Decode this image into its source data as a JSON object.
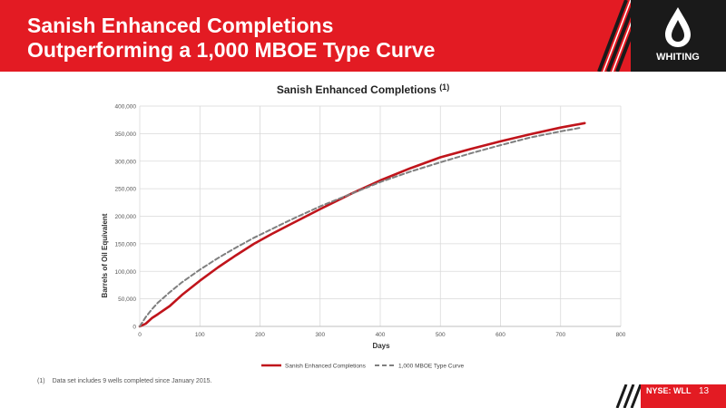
{
  "slide": {
    "title_line1": "Sanish Enhanced Completions",
    "title_line2": "Outperforming a 1,000 MBOE Type Curve",
    "footnote_number": "(1)",
    "footnote_text": "Data set includes 9 wells completed since January 2015.",
    "ticker_prefix": "NYSE:",
    "ticker_symbol": "WLL",
    "page_number": "13",
    "logo_text": "WHITING"
  },
  "colors": {
    "brand_red": "#e31b23",
    "series_enhanced": "#c0141b",
    "series_type_curve": "#7f7f7f"
  },
  "chart_data": {
    "type": "line",
    "title": "Sanish Enhanced Completions",
    "title_superscript": "(1)",
    "xlabel": "Days",
    "ylabel": "Barrels of Oil Equivalent",
    "xlim": [
      0,
      800
    ],
    "ylim": [
      0,
      400000
    ],
    "x_ticks": [
      0,
      100,
      200,
      300,
      400,
      500,
      600,
      700,
      800
    ],
    "y_ticks": [
      0,
      50000,
      100000,
      150000,
      200000,
      250000,
      300000,
      350000,
      400000
    ],
    "x_tick_labels": [
      "0",
      "100",
      "200",
      "300",
      "400",
      "500",
      "600",
      "700",
      "800"
    ],
    "y_tick_labels": [
      "0",
      "50,000",
      "100,000",
      "150,000",
      "200,000",
      "250,000",
      "300,000",
      "350,000",
      "400,000"
    ],
    "grid": true,
    "legend_position": "bottom",
    "series": [
      {
        "name": "Sanish Enhanced Completions",
        "style": "solid",
        "x": [
          0,
          10,
          20,
          30,
          50,
          70,
          100,
          130,
          160,
          190,
          220,
          250,
          300,
          350,
          400,
          450,
          500,
          550,
          600,
          650,
          700,
          740
        ],
        "y": [
          0,
          5000,
          15000,
          22000,
          37000,
          57000,
          83000,
          107000,
          129000,
          150000,
          168000,
          185000,
          213000,
          240000,
          265000,
          287000,
          307000,
          322000,
          336000,
          349000,
          361000,
          369000
        ]
      },
      {
        "name": "1,000 MBOE Type Curve",
        "style": "dashed",
        "x": [
          0,
          10,
          20,
          30,
          50,
          70,
          100,
          130,
          160,
          190,
          220,
          250,
          300,
          350,
          400,
          450,
          500,
          550,
          600,
          650,
          700,
          735
        ],
        "y": [
          0,
          17000,
          31000,
          43000,
          62000,
          80000,
          103000,
          124000,
          143000,
          161000,
          177000,
          193000,
          218000,
          240000,
          262000,
          281000,
          298000,
          314000,
          329000,
          343000,
          354000,
          361000
        ]
      }
    ]
  }
}
